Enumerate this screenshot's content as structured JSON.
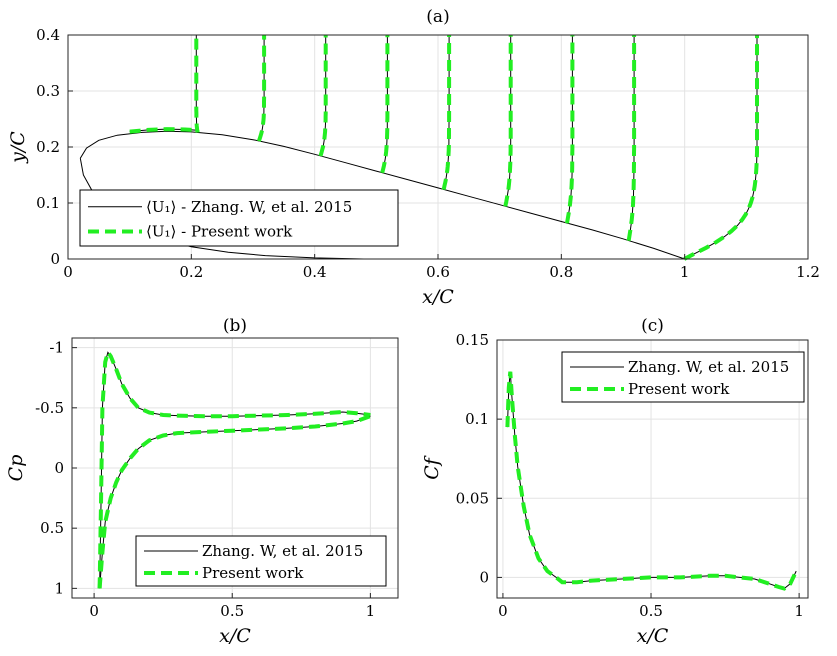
{
  "chart_data": [
    {
      "panel": "(a)",
      "type": "line",
      "title": "(a)",
      "xlabel": "x/C",
      "ylabel": "y/C",
      "xlim": [
        0,
        1.2
      ],
      "ylim": [
        0,
        0.4
      ],
      "xticks": [
        "0",
        "0.2",
        "0.4",
        "0.6",
        "0.8",
        "1",
        "1.2"
      ],
      "yticks": [
        "0",
        "0.1",
        "0.2",
        "0.3",
        "0.4"
      ],
      "grid": true,
      "legend_position": "bottom-left",
      "series": [
        {
          "name": "⟨U₁⟩ - Zhang. W, et al. 2015",
          "style": "solid-black"
        },
        {
          "name": "⟨U₁⟩ - Present work",
          "style": "dashed-green"
        }
      ],
      "airfoil_upper": {
        "x": [
          0.02,
          0.03,
          0.05,
          0.08,
          0.12,
          0.16,
          0.2,
          0.25,
          0.3,
          0.35,
          0.4,
          0.45,
          0.5,
          0.55,
          0.6,
          0.65,
          0.7,
          0.75,
          0.8,
          0.85,
          0.9,
          0.95,
          1.0
        ],
        "y": [
          0.18,
          0.198,
          0.212,
          0.221,
          0.226,
          0.228,
          0.227,
          0.222,
          0.213,
          0.201,
          0.187,
          0.172,
          0.157,
          0.142,
          0.127,
          0.112,
          0.097,
          0.082,
          0.067,
          0.052,
          0.036,
          0.019,
          0.0
        ]
      },
      "airfoil_lower": {
        "x": [
          0.02,
          0.025,
          0.04,
          0.06,
          0.09,
          0.12,
          0.16,
          0.2,
          0.26,
          0.32,
          0.4,
          0.48,
          0.56,
          0.64,
          0.66
        ],
        "y": [
          0.18,
          0.15,
          0.12,
          0.09,
          0.065,
          0.048,
          0.033,
          0.022,
          0.012,
          0.006,
          0.002,
          0.0,
          0.0,
          0.0,
          0.0
        ]
      },
      "velocity_profile_stations_x": [
        0.21,
        0.31,
        0.41,
        0.51,
        0.61,
        0.71,
        0.81,
        0.91,
        1.01
      ],
      "velocity_profile_peak_x": [
        0.208,
        0.318,
        0.418,
        0.518,
        0.618,
        0.718,
        0.818,
        0.918,
        1.118
      ]
    },
    {
      "panel": "(b)",
      "type": "line",
      "title": "(b)",
      "xlabel": "x/C",
      "ylabel": "Cp",
      "xlim": [
        -0.08,
        1.1
      ],
      "ylim": [
        1.08,
        -1.08
      ],
      "y_reversed": true,
      "xticks": [
        "0",
        "0.5",
        "1"
      ],
      "yticks": [
        "-1",
        "-0.5",
        "0",
        "0.5",
        "1"
      ],
      "grid": true,
      "legend_position": "bottom-right",
      "series": [
        {
          "name": "Zhang. W, et al. 2015",
          "style": "solid-black"
        },
        {
          "name": "Present work",
          "style": "dashed-green"
        }
      ],
      "suction_side": {
        "x": [
          0.02,
          0.025,
          0.03,
          0.04,
          0.05,
          0.06,
          0.08,
          0.1,
          0.13,
          0.16,
          0.2,
          0.25,
          0.3,
          0.4,
          0.5,
          0.6,
          0.7,
          0.8,
          0.9,
          0.95,
          1.0
        ],
        "y": [
          1.0,
          0.3,
          -0.5,
          -0.88,
          -0.96,
          -0.93,
          -0.82,
          -0.7,
          -0.58,
          -0.5,
          -0.46,
          -0.44,
          -0.435,
          -0.43,
          -0.43,
          -0.435,
          -0.44,
          -0.45,
          -0.465,
          -0.455,
          -0.44
        ]
      },
      "pressure_side": {
        "x": [
          0.02,
          0.03,
          0.04,
          0.06,
          0.08,
          0.1,
          0.13,
          0.16,
          0.2,
          0.25,
          0.3,
          0.4,
          0.5,
          0.6,
          0.7,
          0.8,
          0.9,
          0.95,
          1.0
        ],
        "y": [
          1.0,
          0.7,
          0.45,
          0.25,
          0.12,
          0.02,
          -0.08,
          -0.16,
          -0.23,
          -0.27,
          -0.29,
          -0.3,
          -0.31,
          -0.32,
          -0.33,
          -0.345,
          -0.37,
          -0.39,
          -0.43
        ]
      }
    },
    {
      "panel": "(c)",
      "type": "line",
      "title": "(c)",
      "xlabel": "x/C",
      "ylabel": "Cf",
      "xlim": [
        -0.02,
        1.03
      ],
      "ylim": [
        -0.013,
        0.15
      ],
      "xticks": [
        "0",
        "0.5",
        "1"
      ],
      "yticks": [
        "0",
        "0.05",
        "0.1",
        "0.15"
      ],
      "grid": true,
      "legend_position": "top-right",
      "series": [
        {
          "name": "Zhang. W, et al. 2015",
          "style": "solid-black"
        },
        {
          "name": "Present work",
          "style": "dashed-green"
        }
      ],
      "curve": {
        "x": [
          0.015,
          0.02,
          0.025,
          0.03,
          0.04,
          0.05,
          0.07,
          0.09,
          0.12,
          0.15,
          0.18,
          0.2,
          0.25,
          0.3,
          0.4,
          0.5,
          0.6,
          0.7,
          0.75,
          0.8,
          0.85,
          0.9,
          0.93,
          0.95,
          0.97,
          0.99
        ],
        "y": [
          0.095,
          0.12,
          0.13,
          0.115,
          0.09,
          0.07,
          0.045,
          0.027,
          0.012,
          0.004,
          0.0,
          -0.003,
          -0.003,
          -0.002,
          -0.001,
          0.0,
          0.0,
          0.001,
          0.001,
          0.0,
          -0.001,
          -0.004,
          -0.006,
          -0.007,
          -0.004,
          0.004
        ]
      }
    }
  ]
}
